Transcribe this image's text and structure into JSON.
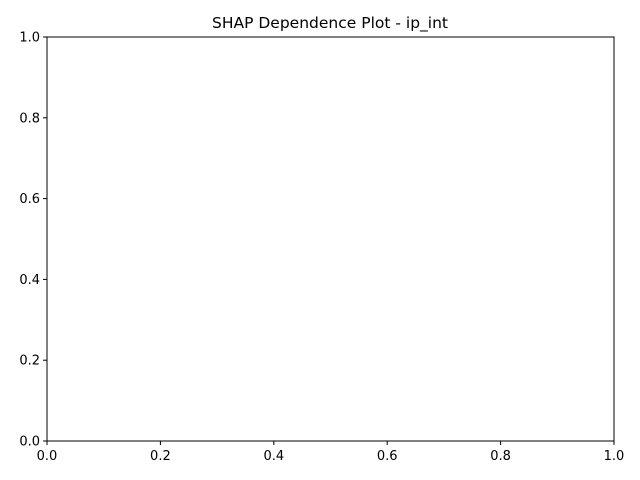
{
  "chart_data": {
    "type": "scatter",
    "title": "SHAP Dependence Plot - ip_int",
    "xlabel": "",
    "ylabel": "",
    "xlim": [
      0,
      1
    ],
    "ylim": [
      0,
      1
    ],
    "x_ticks": [
      "0.0",
      "0.2",
      "0.4",
      "0.6",
      "0.8",
      "1.0"
    ],
    "y_ticks": [
      "0.0",
      "0.2",
      "0.4",
      "0.6",
      "0.8",
      "1.0"
    ],
    "grid": false,
    "legend": "none",
    "series": []
  }
}
